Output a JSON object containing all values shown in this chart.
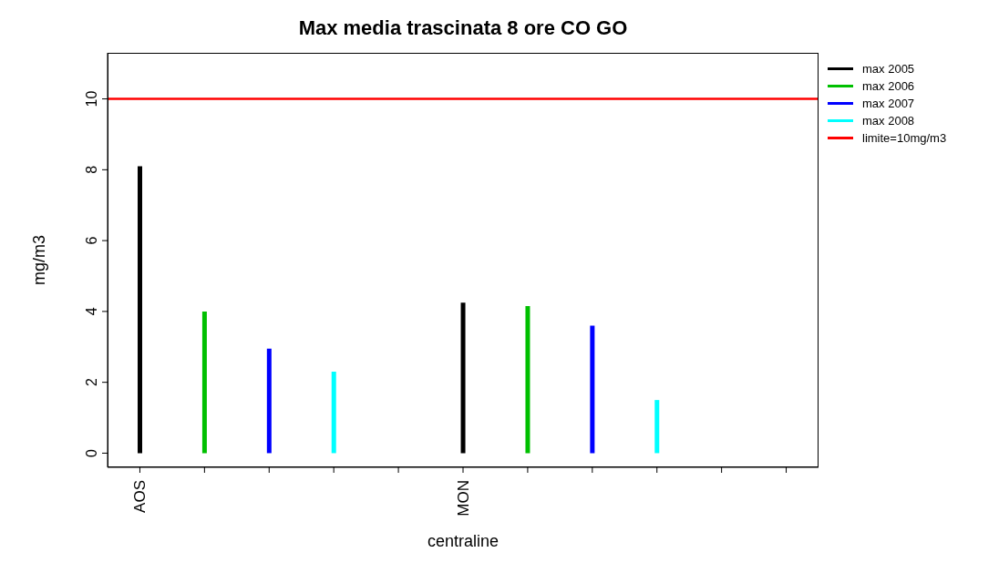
{
  "chart_data": {
    "type": "bar",
    "title": "Max media trascinata 8 ore CO GO",
    "xlabel": "centraline",
    "ylabel": "mg/m3",
    "categories": [
      "AOS",
      null,
      null,
      null,
      null,
      "MON",
      null,
      null,
      null,
      null,
      null
    ],
    "series": [
      {
        "name": "max 2005",
        "color": "#000000",
        "values": [
          8.1,
          null,
          null,
          null,
          null,
          4.25,
          null,
          null,
          null,
          null,
          null
        ]
      },
      {
        "name": "max 2006",
        "color": "#00c000",
        "values": [
          null,
          4.0,
          null,
          null,
          null,
          null,
          4.15,
          null,
          null,
          null,
          null
        ]
      },
      {
        "name": "max 2007",
        "color": "#0000ff",
        "values": [
          null,
          null,
          2.95,
          null,
          null,
          null,
          null,
          3.6,
          null,
          null,
          null
        ]
      },
      {
        "name": "max 2008",
        "color": "#00ffff",
        "values": [
          null,
          null,
          null,
          2.3,
          null,
          null,
          null,
          null,
          1.5,
          null,
          null
        ]
      }
    ],
    "ylim": [
      -0.4,
      11.3
    ],
    "yticks": [
      0,
      2,
      4,
      6,
      8,
      10
    ],
    "ref_lines": [
      {
        "axis": "y",
        "value": 10,
        "label": "limite=10mg/m3",
        "color": "#ff0000"
      }
    ],
    "legend": "top right",
    "grid": false
  }
}
